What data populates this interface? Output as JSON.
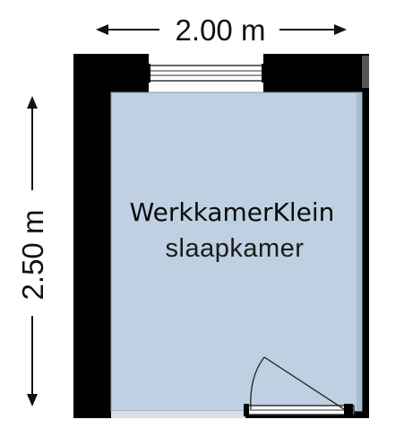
{
  "dimensions": {
    "width_label": "2.00 m",
    "height_label": "2.50 m"
  },
  "room": {
    "name_line1": "WerkkamerKlein",
    "name_line2": "slaapkamer"
  },
  "colors": {
    "wall": "#000000",
    "floor": "#bed0e2",
    "floor_edge": "#8a9aab",
    "window_frame": "#333333",
    "arrow": "#111111"
  }
}
